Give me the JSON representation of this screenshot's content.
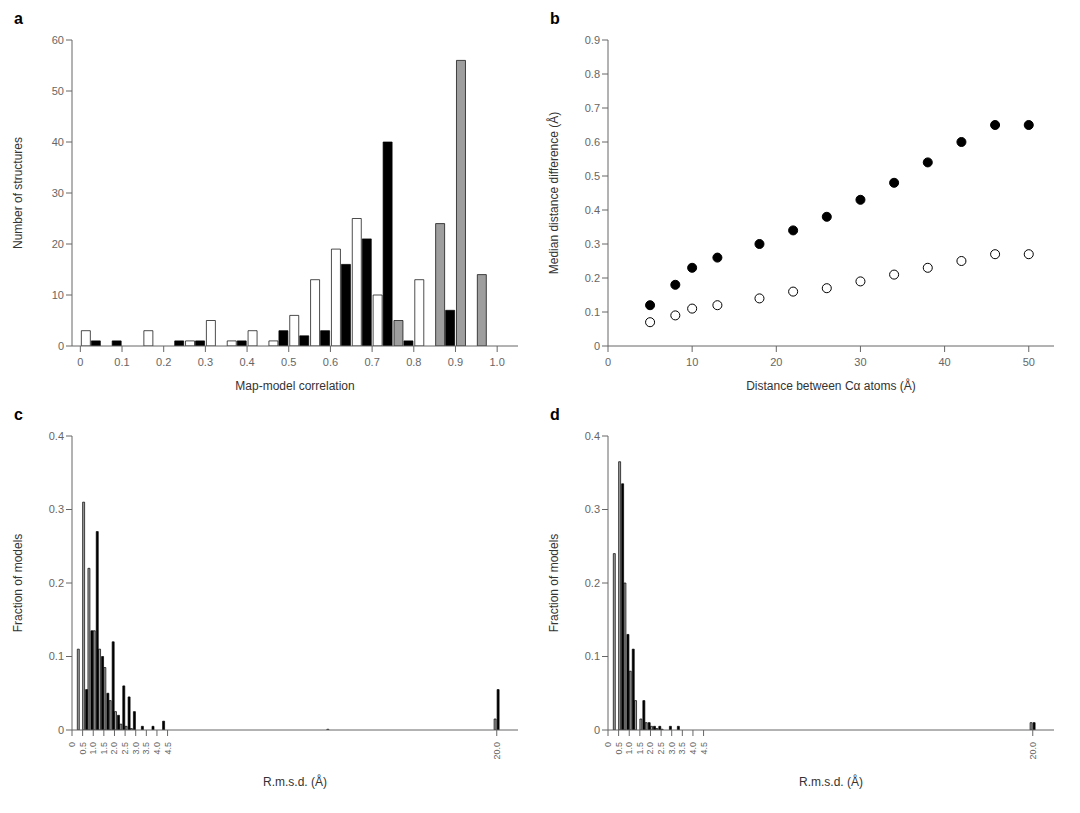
{
  "chart_data": [
    {
      "type": "bar",
      "title": "a",
      "xlabel": "Map-model correlation",
      "ylabel": "Number of structures",
      "bins": [
        0.0,
        0.05,
        0.1,
        0.15,
        0.2,
        0.25,
        0.3,
        0.35,
        0.4,
        0.45,
        0.5,
        0.55,
        0.6,
        0.65,
        0.7,
        0.75,
        0.8,
        0.85,
        0.9,
        0.95,
        1.0
      ],
      "xlim": [
        -0.02,
        1.05
      ],
      "xticks": [
        0,
        0.1,
        0.2,
        0.3,
        0.4,
        0.5,
        0.6,
        0.7,
        0.8,
        0.9,
        {
          "value": 1.0,
          "label": "1.0"
        }
      ],
      "ylim": [
        0,
        60
      ],
      "yticks": [
        0,
        10,
        20,
        30,
        40,
        50,
        60
      ],
      "grid": false,
      "series": [
        {
          "colors": [
            "#ffffff",
            "#ffffff",
            "#ffffff",
            "#ffffff",
            "#ffffff",
            "#ffffff",
            "#ffffff",
            "#ffffff",
            "#ffffff",
            "#ffffff",
            "#ffffff",
            "#ffffff",
            "#ffffff",
            "#ffffff",
            "#ffffff",
            "#9e9e9e",
            "#ffffff",
            "#9e9e9e",
            "#9e9e9e",
            "#9e9e9e"
          ],
          "values": [
            3,
            0,
            0,
            3,
            0,
            1,
            5,
            1,
            3,
            1,
            6,
            13,
            19,
            25,
            10,
            5,
            13,
            24,
            56,
            14
          ]
        },
        {
          "color": "#000000",
          "values": [
            1,
            1,
            0,
            0,
            1,
            1,
            0,
            1,
            0,
            3,
            2,
            3,
            16,
            21,
            40,
            1,
            0,
            7,
            0,
            0
          ]
        }
      ]
    },
    {
      "type": "scatter",
      "title": "b",
      "xlabel": "Distance between Cα atoms (Å)",
      "ylabel": "Median distance difference (Å)",
      "xlim": [
        0,
        53
      ],
      "xticks": [
        0,
        10,
        20,
        30,
        40,
        50
      ],
      "ylim": [
        0,
        0.9
      ],
      "yticks": [
        0,
        0.1,
        0.2,
        0.3,
        0.4,
        0.5,
        0.6,
        0.7,
        0.8,
        0.9
      ],
      "grid": false,
      "series": [
        {
          "color": "#000000",
          "marker": "circle",
          "x": [
            5,
            8,
            10,
            13,
            18,
            22,
            26,
            30,
            34,
            38,
            42,
            46,
            50
          ],
          "values": [
            0.12,
            0.18,
            0.23,
            0.26,
            0.3,
            0.34,
            0.38,
            0.43,
            0.48,
            0.54,
            0.6,
            0.65,
            0.65
          ]
        },
        {
          "color": "#ffffff",
          "marker": "circle",
          "x": [
            5,
            8,
            10,
            13,
            18,
            22,
            26,
            30,
            34,
            38,
            42,
            46,
            50
          ],
          "values": [
            0.07,
            0.09,
            0.11,
            0.12,
            0.14,
            0.16,
            0.17,
            0.19,
            0.21,
            0.23,
            0.25,
            0.27,
            0.27
          ]
        }
      ]
    },
    {
      "type": "bar",
      "title": "c",
      "xlabel": "R.m.s.d. (Å)",
      "ylabel": "Fraction of models",
      "bins": [
        0.25,
        0.5,
        0.75,
        1.0,
        1.25,
        1.5,
        1.75,
        2.0,
        2.25,
        2.5,
        2.75,
        3.0,
        3.5,
        4.0,
        4.5,
        19.75,
        20.25
      ],
      "xlim": [
        0,
        21
      ],
      "xticks": [
        0,
        0.5,
        {
          "value": 1.0,
          "label": "1.0"
        },
        1.5,
        {
          "value": 2.0,
          "label": "2.0"
        },
        2.5,
        {
          "value": 3.0,
          "label": "3.0"
        },
        3.5,
        {
          "value": 4.0,
          "label": "4.0"
        },
        4.5,
        {
          "value": 20.0,
          "label": "20.0"
        }
      ],
      "ylim": [
        0,
        0.4
      ],
      "yticks": [
        0,
        0.1,
        0.2,
        0.3,
        0.4
      ],
      "grid": false,
      "series": [
        {
          "color": "#9e9e9e",
          "values": [
            0.11,
            0.31,
            0.22,
            0.135,
            0.11,
            0.085,
            0.04,
            0.025,
            0.008,
            0.005,
            0.002,
            0.0,
            0.0,
            0.0,
            0.001,
            0.015
          ]
        },
        {
          "color": "#000000",
          "values": [
            0.0,
            0.055,
            0.135,
            0.27,
            0.1,
            0.05,
            0.12,
            0.02,
            0.06,
            0.045,
            0.025,
            0.005,
            0.005,
            0.012,
            0.0,
            0.055
          ]
        }
      ]
    },
    {
      "type": "bar",
      "title": "d",
      "xlabel": "R.m.s.d. (Å)",
      "ylabel": "Fraction of models",
      "bins": [
        0.25,
        0.5,
        0.75,
        1.0,
        1.25,
        1.5,
        1.75,
        2.0,
        2.25,
        2.5,
        2.75,
        3.0,
        3.5,
        4.0,
        4.5,
        19.75,
        20.25
      ],
      "xlim": [
        0,
        21
      ],
      "xticks": [
        0,
        0.5,
        {
          "value": 1.0,
          "label": "1.0"
        },
        1.5,
        {
          "value": 2.0,
          "label": "2.0"
        },
        2.5,
        {
          "value": 3.0,
          "label": "3.0"
        },
        3.5,
        {
          "value": 4.0,
          "label": "4.0"
        },
        4.5,
        {
          "value": 20.0,
          "label": "20.0"
        }
      ],
      "ylim": [
        0,
        0.4
      ],
      "yticks": [
        0,
        0.1,
        0.2,
        0.3,
        0.4
      ],
      "grid": false,
      "series": [
        {
          "color": "#9e9e9e",
          "values": [
            0.24,
            0.365,
            0.2,
            0.08,
            0.04,
            0.015,
            0.01,
            0.005,
            0.002,
            0.001,
            0.0,
            0.0,
            0.0,
            0.0,
            0.0,
            0.01
          ]
        },
        {
          "color": "#000000",
          "values": [
            0.0,
            0.335,
            0.13,
            0.11,
            0.0,
            0.04,
            0.01,
            0.005,
            0.005,
            0.0,
            0.005,
            0.005,
            0.0,
            0.0,
            0.0,
            0.01
          ]
        }
      ]
    }
  ]
}
